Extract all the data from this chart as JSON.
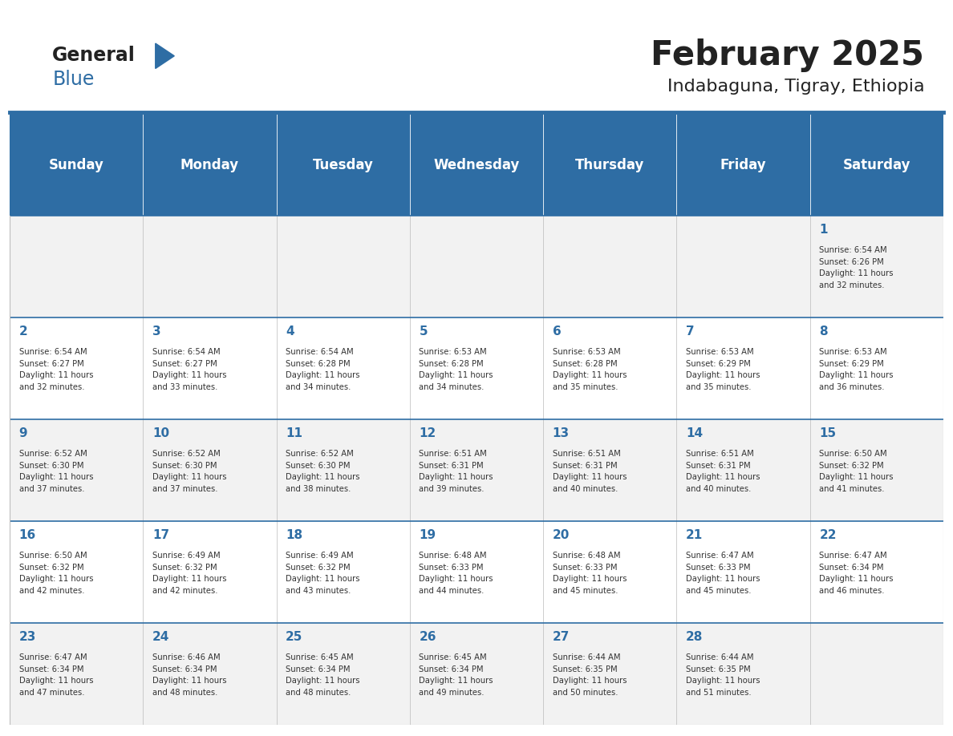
{
  "title": "February 2025",
  "subtitle": "Indabaguna, Tigray, Ethiopia",
  "days_of_week": [
    "Sunday",
    "Monday",
    "Tuesday",
    "Wednesday",
    "Thursday",
    "Friday",
    "Saturday"
  ],
  "header_bg": "#2E6DA4",
  "header_text": "#FFFFFF",
  "row_bg_odd": "#F2F2F2",
  "row_bg_even": "#FFFFFF",
  "border_color": "#BBBBBB",
  "week_divider_color": "#2E6DA4",
  "day_num_color": "#2E6DA4",
  "cell_text_color": "#333333",
  "title_color": "#222222",
  "logo_general_color": "#222222",
  "logo_blue_color": "#2E6DA4",
  "logo_triangle_color": "#2E6DA4",
  "calendar": [
    [
      null,
      null,
      null,
      null,
      null,
      null,
      1
    ],
    [
      2,
      3,
      4,
      5,
      6,
      7,
      8
    ],
    [
      9,
      10,
      11,
      12,
      13,
      14,
      15
    ],
    [
      16,
      17,
      18,
      19,
      20,
      21,
      22
    ],
    [
      23,
      24,
      25,
      26,
      27,
      28,
      null
    ]
  ],
  "sun_data": {
    "1": {
      "sunrise": "6:54 AM",
      "sunset": "6:26 PM",
      "daylight": "11 hours and 32 minutes."
    },
    "2": {
      "sunrise": "6:54 AM",
      "sunset": "6:27 PM",
      "daylight": "11 hours and 32 minutes."
    },
    "3": {
      "sunrise": "6:54 AM",
      "sunset": "6:27 PM",
      "daylight": "11 hours and 33 minutes."
    },
    "4": {
      "sunrise": "6:54 AM",
      "sunset": "6:28 PM",
      "daylight": "11 hours and 34 minutes."
    },
    "5": {
      "sunrise": "6:53 AM",
      "sunset": "6:28 PM",
      "daylight": "11 hours and 34 minutes."
    },
    "6": {
      "sunrise": "6:53 AM",
      "sunset": "6:28 PM",
      "daylight": "11 hours and 35 minutes."
    },
    "7": {
      "sunrise": "6:53 AM",
      "sunset": "6:29 PM",
      "daylight": "11 hours and 35 minutes."
    },
    "8": {
      "sunrise": "6:53 AM",
      "sunset": "6:29 PM",
      "daylight": "11 hours and 36 minutes."
    },
    "9": {
      "sunrise": "6:52 AM",
      "sunset": "6:30 PM",
      "daylight": "11 hours and 37 minutes."
    },
    "10": {
      "sunrise": "6:52 AM",
      "sunset": "6:30 PM",
      "daylight": "11 hours and 37 minutes."
    },
    "11": {
      "sunrise": "6:52 AM",
      "sunset": "6:30 PM",
      "daylight": "11 hours and 38 minutes."
    },
    "12": {
      "sunrise": "6:51 AM",
      "sunset": "6:31 PM",
      "daylight": "11 hours and 39 minutes."
    },
    "13": {
      "sunrise": "6:51 AM",
      "sunset": "6:31 PM",
      "daylight": "11 hours and 40 minutes."
    },
    "14": {
      "sunrise": "6:51 AM",
      "sunset": "6:31 PM",
      "daylight": "11 hours and 40 minutes."
    },
    "15": {
      "sunrise": "6:50 AM",
      "sunset": "6:32 PM",
      "daylight": "11 hours and 41 minutes."
    },
    "16": {
      "sunrise": "6:50 AM",
      "sunset": "6:32 PM",
      "daylight": "11 hours and 42 minutes."
    },
    "17": {
      "sunrise": "6:49 AM",
      "sunset": "6:32 PM",
      "daylight": "11 hours and 42 minutes."
    },
    "18": {
      "sunrise": "6:49 AM",
      "sunset": "6:32 PM",
      "daylight": "11 hours and 43 minutes."
    },
    "19": {
      "sunrise": "6:48 AM",
      "sunset": "6:33 PM",
      "daylight": "11 hours and 44 minutes."
    },
    "20": {
      "sunrise": "6:48 AM",
      "sunset": "6:33 PM",
      "daylight": "11 hours and 45 minutes."
    },
    "21": {
      "sunrise": "6:47 AM",
      "sunset": "6:33 PM",
      "daylight": "11 hours and 45 minutes."
    },
    "22": {
      "sunrise": "6:47 AM",
      "sunset": "6:34 PM",
      "daylight": "11 hours and 46 minutes."
    },
    "23": {
      "sunrise": "6:47 AM",
      "sunset": "6:34 PM",
      "daylight": "11 hours and 47 minutes."
    },
    "24": {
      "sunrise": "6:46 AM",
      "sunset": "6:34 PM",
      "daylight": "11 hours and 48 minutes."
    },
    "25": {
      "sunrise": "6:45 AM",
      "sunset": "6:34 PM",
      "daylight": "11 hours and 48 minutes."
    },
    "26": {
      "sunrise": "6:45 AM",
      "sunset": "6:34 PM",
      "daylight": "11 hours and 49 minutes."
    },
    "27": {
      "sunrise": "6:44 AM",
      "sunset": "6:35 PM",
      "daylight": "11 hours and 50 minutes."
    },
    "28": {
      "sunrise": "6:44 AM",
      "sunset": "6:35 PM",
      "daylight": "11 hours and 51 minutes."
    }
  }
}
